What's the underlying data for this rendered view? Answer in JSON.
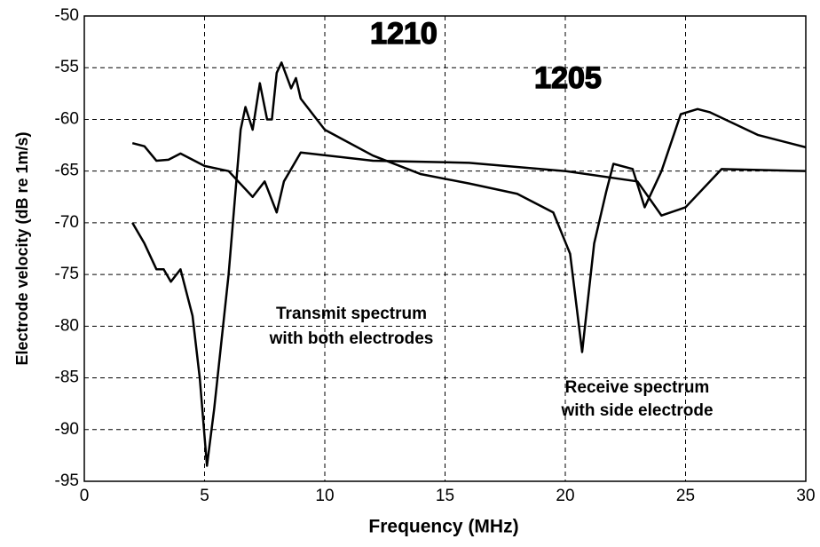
{
  "chart_data": {
    "type": "line",
    "xlabel": "Frequency (MHz)",
    "ylabel": "Electrode velocity (dB re 1m/s)",
    "xlim": [
      0,
      30
    ],
    "xticks": [
      0,
      5,
      10,
      15,
      20,
      25,
      30
    ],
    "ylim": [
      -95,
      -50
    ],
    "yticks": [
      -95,
      -90,
      -85,
      -80,
      -75,
      -70,
      -65,
      -60,
      -55,
      -50
    ],
    "grid": true,
    "series": [
      {
        "color": "#000000",
        "x": [
          2,
          2.5,
          3,
          3.3,
          3.6,
          4,
          4.5,
          4.8,
          5.1,
          5.4,
          6,
          6.5,
          6.7,
          7,
          7.3,
          7.6,
          7.8,
          8,
          8.2,
          8.6,
          8.8,
          9,
          10,
          12,
          14,
          16,
          18,
          19.5,
          20.2,
          20.7,
          21.2,
          21.7,
          22,
          22.8,
          23.3,
          24,
          24.8,
          25.5,
          26,
          28,
          30
        ],
        "values": [
          -70,
          -72,
          -74.5,
          -74.5,
          -75.7,
          -74.5,
          -79,
          -85,
          -93.5,
          -88,
          -75,
          -61,
          -58.8,
          -61,
          -56.5,
          -60,
          -60,
          -55.5,
          -54.5,
          -57,
          -56,
          -58,
          -61,
          -63.5,
          -65.3,
          -66.2,
          -67.2,
          -69,
          -73,
          -82.5,
          -72,
          -67,
          -64.3,
          -64.8,
          -68.5,
          -65,
          -59.5,
          -59,
          -59.3,
          -61.5,
          -62.7
        ]
      },
      {
        "color": "#000000",
        "x": [
          2,
          2.5,
          3,
          3.5,
          4,
          5,
          6,
          7,
          7.5,
          8,
          8.3,
          9,
          12,
          16,
          20,
          23,
          24,
          25,
          26.5,
          30
        ],
        "values": [
          -62.3,
          -62.6,
          -64,
          -63.9,
          -63.3,
          -64.5,
          -65,
          -67.5,
          -66,
          -69,
          -66,
          -63.2,
          -64,
          -64.2,
          -65,
          -66,
          -69.3,
          -68.5,
          -64.8,
          -65
        ]
      }
    ],
    "annotations": [
      {
        "text": "1210"
      },
      {
        "text": "1205"
      },
      {
        "text": "Transmit spectrum"
      },
      {
        "text": "with both electrodes"
      },
      {
        "text": "Receive spectrum"
      },
      {
        "text": "with side electrode"
      }
    ]
  }
}
